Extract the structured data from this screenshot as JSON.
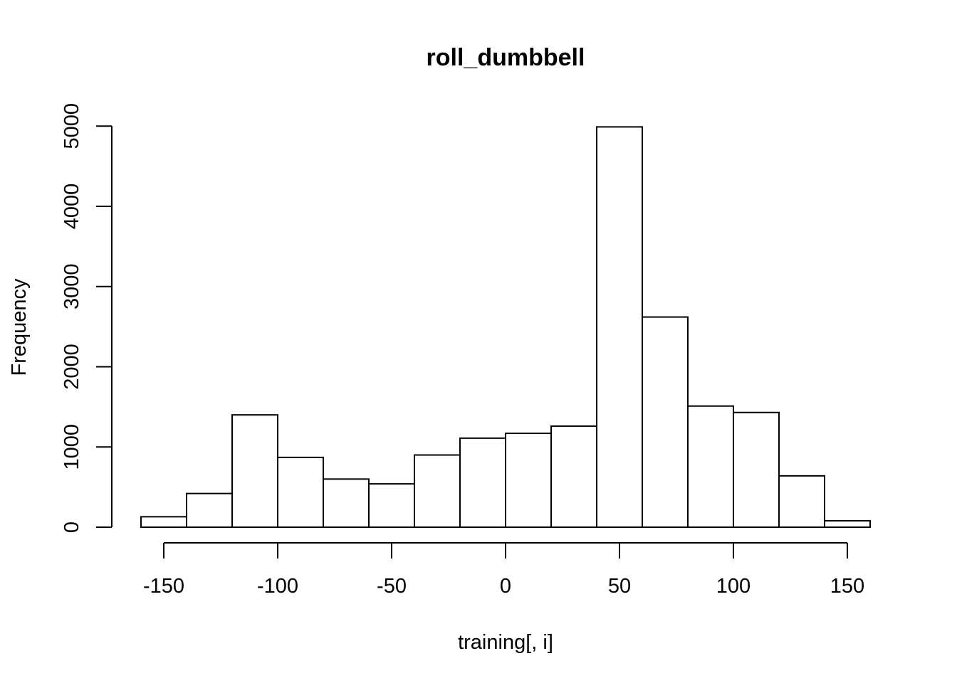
{
  "chart_data": {
    "type": "bar",
    "title": "roll_dumbbell",
    "xlabel": "training[, i]",
    "ylabel": "Frequency",
    "bin_edges": [
      -160,
      -140,
      -120,
      -100,
      -80,
      -60,
      -40,
      -20,
      0,
      20,
      40,
      60,
      80,
      100,
      120,
      140,
      160
    ],
    "values": [
      130,
      420,
      1400,
      870,
      600,
      540,
      900,
      1110,
      1170,
      1260,
      4990,
      2620,
      1510,
      1430,
      640,
      80
    ],
    "xlim": [
      -160,
      160
    ],
    "ylim": [
      0,
      5000
    ],
    "x_ticks": [
      -150,
      -100,
      -50,
      0,
      50,
      100,
      150
    ],
    "x_tick_labels": [
      "-150",
      "-100",
      "-50",
      "0",
      "50",
      "100",
      "150"
    ],
    "y_ticks": [
      0,
      1000,
      2000,
      3000,
      4000,
      5000
    ],
    "y_tick_labels": [
      "0",
      "1000",
      "2000",
      "3000",
      "4000",
      "5000"
    ],
    "grid": false,
    "bar_fill": "#ffffff",
    "bar_stroke": "#000000"
  }
}
